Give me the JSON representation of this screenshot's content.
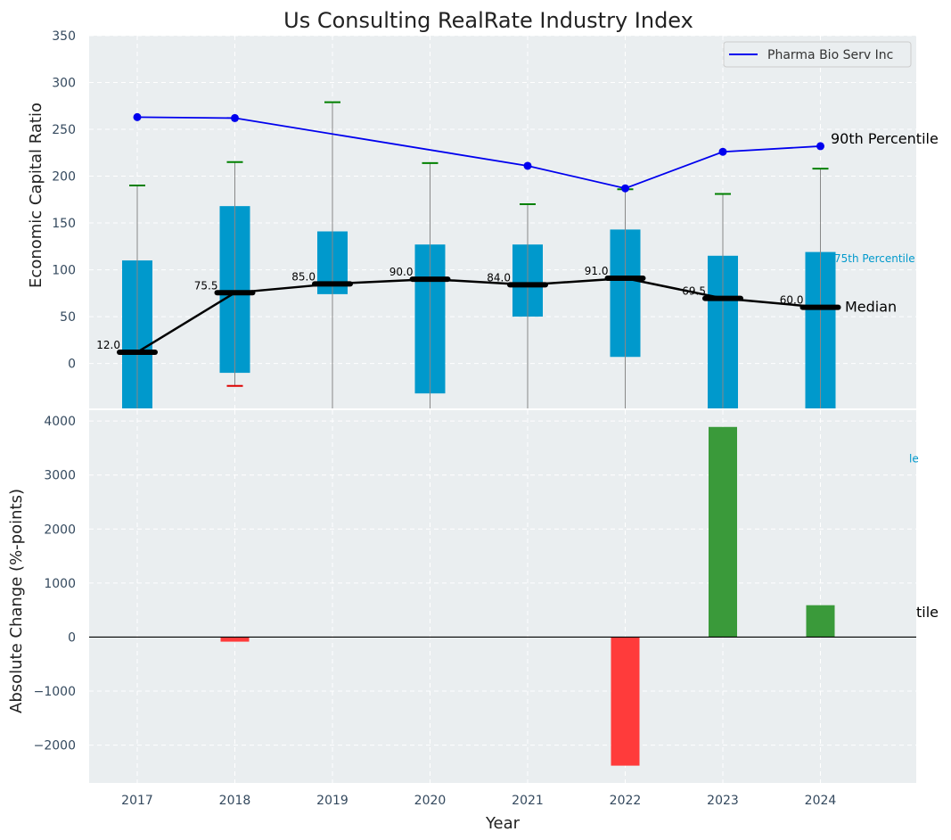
{
  "chart_data": {
    "title": "Us Consulting RealRate Industry Index",
    "xlabel": "Year",
    "top": {
      "type": "box",
      "ylabel": "Economic Capital Ratio",
      "ylim": [
        -48,
        350
      ],
      "yticks": [
        "0",
        "50",
        "100",
        "150",
        "200",
        "250",
        "300",
        "350"
      ],
      "ytick_values": [
        0,
        50,
        100,
        150,
        200,
        250,
        300,
        350
      ],
      "grid": true,
      "categories": [
        "2017",
        "2018",
        "2019",
        "2020",
        "2021",
        "2022",
        "2023",
        "2024"
      ],
      "boxes": [
        {
          "year": "2017",
          "q1": -48,
          "q3": 110,
          "median": 12.0,
          "median_label": "12.0",
          "whisker_high": 190,
          "whisker_low": null
        },
        {
          "year": "2018",
          "q1": -10,
          "q3": 168,
          "median": 75.5,
          "median_label": "75.5",
          "whisker_high": 215,
          "whisker_low": -24
        },
        {
          "year": "2019",
          "q1": 74,
          "q3": 141,
          "median": 85.0,
          "median_label": "85.0",
          "whisker_high": 279,
          "whisker_low": null
        },
        {
          "year": "2020",
          "q1": -32,
          "q3": 127,
          "median": 90.0,
          "median_label": "90.0",
          "whisker_high": 214,
          "whisker_low": null
        },
        {
          "year": "2021",
          "q1": 50,
          "q3": 127,
          "median": 84.0,
          "median_label": "84.0",
          "whisker_high": 170,
          "whisker_low": null
        },
        {
          "year": "2022",
          "q1": 7,
          "q3": 143,
          "median": 91.0,
          "median_label": "91.0",
          "whisker_high": 186,
          "whisker_low": null
        },
        {
          "year": "2023",
          "q1": -48,
          "q3": 115,
          "median": 69.5,
          "median_label": "69.5",
          "whisker_high": 181,
          "whisker_low": null
        },
        {
          "year": "2024",
          "q1": -48,
          "q3": 119,
          "median": 60.0,
          "median_label": "60.0",
          "whisker_high": 208,
          "whisker_low": null
        }
      ],
      "series": [
        {
          "name": "Pharma Bio Serv Inc",
          "values": [
            263,
            262,
            null,
            null,
            211,
            187,
            226,
            232
          ]
        }
      ],
      "legend": "top-right",
      "annotations": [
        {
          "text": "90th Percentile",
          "year": "2024",
          "value": 210
        },
        {
          "text": "75th Percentile",
          "year": "2024",
          "value": 112
        },
        {
          "text": "Median",
          "year": "2024",
          "value": 60
        }
      ],
      "colors": {
        "box": "#0099cc",
        "median": "#000000",
        "series": "#0000ee",
        "whisker_high": "#008000",
        "whisker_low": "#dd0000",
        "whisker_line": "#888888"
      }
    },
    "bottom": {
      "type": "bar",
      "ylabel": "Absolute Change (%-points)",
      "ylim": [
        -2700,
        4200
      ],
      "yticks": [
        "−2000",
        "−1000",
        "0",
        "1000",
        "2000",
        "3000",
        "4000"
      ],
      "ytick_values": [
        -2000,
        -1000,
        0,
        1000,
        2000,
        3000,
        4000
      ],
      "grid": true,
      "categories": [
        "2017",
        "2018",
        "2019",
        "2020",
        "2021",
        "2022",
        "2023",
        "2024"
      ],
      "values": [
        0,
        -85,
        0,
        0,
        0,
        -2380,
        3890,
        590
      ],
      "colors": {
        "positive": "#3a9a3a",
        "negative": "#ff3b3b"
      },
      "annotations": [
        {
          "text": "tile",
          "value": 470
        },
        {
          "text": "le",
          "value": 3300
        }
      ]
    }
  }
}
